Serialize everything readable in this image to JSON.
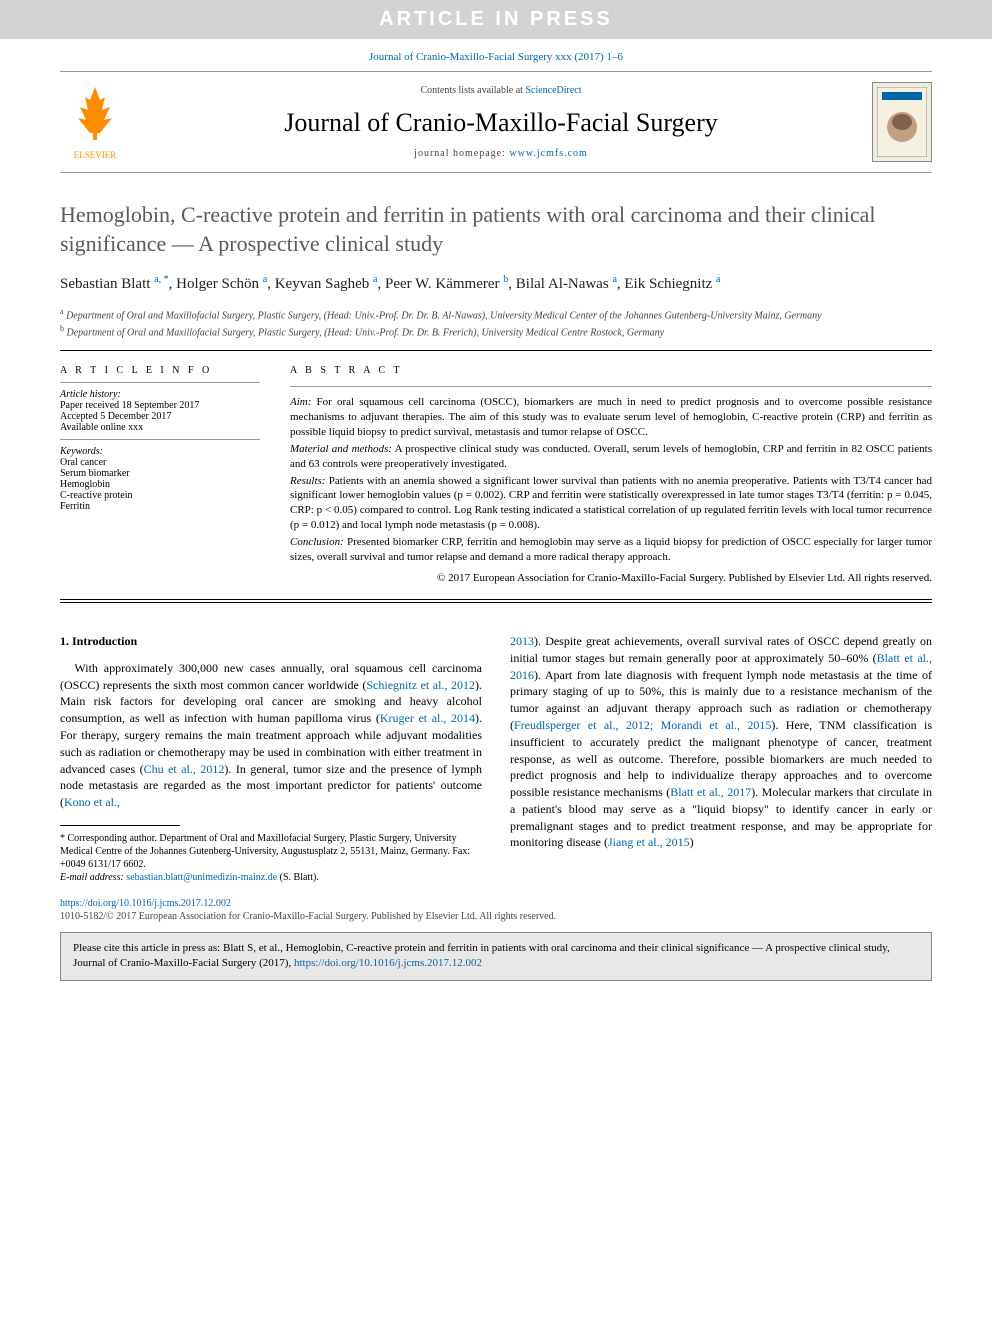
{
  "banner": "ARTICLE IN PRESS",
  "citation": "Journal of Cranio-Maxillo-Facial Surgery xxx (2017) 1–6",
  "header": {
    "contents_prefix": "Contents lists available at ",
    "contents_link": "ScienceDirect",
    "journal_title": "Journal of Cranio-Maxillo-Facial Surgery",
    "homepage_prefix": "journal homepage: ",
    "homepage_link": "www.jcmfs.com",
    "elsevier": "ELSEVIER"
  },
  "title": "Hemoglobin, C-reactive protein and ferritin in patients with oral carcinoma and their clinical significance — A prospective clinical study",
  "authors": [
    {
      "name": "Sebastian Blatt",
      "sup": "a, *"
    },
    {
      "name": "Holger Schön",
      "sup": "a"
    },
    {
      "name": "Keyvan Sagheb",
      "sup": "a"
    },
    {
      "name": "Peer W. Kämmerer",
      "sup": "b"
    },
    {
      "name": "Bilal Al-Nawas",
      "sup": "a"
    },
    {
      "name": "Eik Schiegnitz",
      "sup": "a"
    }
  ],
  "affiliations": [
    {
      "sup": "a",
      "text": "Department of Oral and Maxillofacial Surgery, Plastic Surgery, (Head: Univ.-Prof. Dr. Dr. B. Al-Nawas), University Medical Center of the Johannes Gutenberg-University Mainz, Germany"
    },
    {
      "sup": "b",
      "text": "Department of Oral and Maxillofacial Surgery, Plastic Surgery, (Head: Univ.-Prof. Dr. Dr. B. Frerich), University Medical Centre Rostock, Germany"
    }
  ],
  "info": {
    "header": "A R T I C L E   I N F O",
    "history_hdr": "Article history:",
    "history": [
      "Paper received 18 September 2017",
      "Accepted 5 December 2017",
      "Available online xxx"
    ],
    "keywords_hdr": "Keywords:",
    "keywords": [
      "Oral cancer",
      "Serum biomarker",
      "Hemoglobin",
      "C-reactive protein",
      "Ferritin"
    ]
  },
  "abstract": {
    "header": "A B S T R A C T",
    "sections": [
      {
        "label": "Aim:",
        "text": "For oral squamous cell carcinoma (OSCC), biomarkers are much in need to predict prognosis and to overcome possible resistance mechanisms to adjuvant therapies. The aim of this study was to evaluate serum level of hemoglobin, C-reactive protein (CRP) and ferritin as possible liquid biopsy to predict survival, metastasis and tumor relapse of OSCC."
      },
      {
        "label": "Material and methods:",
        "text": "A prospective clinical study was conducted. Overall, serum levels of hemoglobin, CRP and ferritin in 82 OSCC patients and 63 controls were preoperatively investigated."
      },
      {
        "label": "Results:",
        "text": "Patients with an anemia showed a significant lower survival than patients with no anemia preoperative. Patients with T3/T4 cancer had significant lower hemoglobin values (p = 0.002). CRP and ferritin were statistically overexpressed in late tumor stages T3/T4 (ferritin: p = 0.045, CRP: p < 0.05) compared to control. Log Rank testing indicated a statistical correlation of up regulated ferritin levels with local tumor recurrence (p = 0.012) and local lymph node metastasis (p = 0.008)."
      },
      {
        "label": "Conclusion:",
        "text": "Presented biomarker CRP, ferritin and hemoglobin may serve as a liquid biopsy for prediction of OSCC especially for larger tumor sizes, overall survival and tumor relapse and demand a more radical therapy approach."
      }
    ],
    "copyright": "© 2017 European Association for Cranio-Maxillo-Facial Surgery. Published by Elsevier Ltd. All rights reserved."
  },
  "intro": {
    "heading": "1. Introduction",
    "left": {
      "p1_a": "With approximately 300,000 new cases annually, oral squamous cell carcinoma (OSCC) represents the sixth most common cancer worldwide (",
      "r1": "Schiegnitz et al., 2012",
      "p1_b": "). Main risk factors for developing oral cancer are smoking and heavy alcohol consumption, as well as infection with human papilloma virus (",
      "r2": "Kruger et al., 2014",
      "p1_c": "). For therapy, surgery remains the main treatment approach while adjuvant modalities such as radiation or chemotherapy may be used in combination with either treatment in advanced cases (",
      "r3": "Chu et al., 2012",
      "p1_d": "). In general, tumor size and the presence of lymph node metastasis are regarded as the most important predictor for patients' outcome (",
      "r4": "Kono et al.,"
    },
    "right": {
      "r5": "2013",
      "p2_a": "). Despite great achievements, overall survival rates of OSCC depend greatly on initial tumor stages but remain generally poor at approximately 50–60% (",
      "r6": "Blatt et al., 2016",
      "p2_b": "). Apart from late diagnosis with frequent lymph node metastasis at the time of primary staging of up to 50%, this is mainly due to a resistance mechanism of the tumor against an adjuvant therapy approach such as radiation or chemotherapy (",
      "r7": "Freudlsperger et al., 2012; Morandi et al., 2015",
      "p2_c": "). Here, TNM classification is insufficient to accurately predict the malignant phenotype of cancer, treatment response, as well as outcome. Therefore, possible biomarkers are much needed to predict prognosis and help to individualize therapy approaches and to overcome possible resistance mechanisms (",
      "r8": "Blatt et al., 2017",
      "p2_d": "). Molecular markers that circulate in a patient's blood may serve as a \"liquid biopsy\" to identify cancer in early or premalignant stages and to predict treatment response, and may be appropriate for monitoring disease (",
      "r9": "Jiang et al., 2015",
      "p2_e": ")"
    }
  },
  "corresponding": {
    "star": "*",
    "text": "Corresponding author. Department of Oral and Maxillofacial Surgery, Plastic Surgery, University Medical Centre of the Johannes Gutenberg-University, Augustusplatz 2, 55131, Mainz, Germany. Fax: +0049 6131/17 6602.",
    "email_label": "E-mail address:",
    "email": "sebastian.blatt@unimedizin-mainz.de",
    "email_suffix": "(S. Blatt)."
  },
  "doi": "https://doi.org/10.1016/j.jcms.2017.12.002",
  "issn_line": "1010-5182/© 2017 European Association for Cranio-Maxillo-Facial Surgery. Published by Elsevier Ltd. All rights reserved.",
  "cite_box": {
    "text_a": "Please cite this article in press as: Blatt S, et al., Hemoglobin, C-reactive protein and ferritin in patients with oral carcinoma and their clinical significance — A prospective clinical study, Journal of Cranio-Maxillo-Facial Surgery (2017), ",
    "link": "https://doi.org/10.1016/j.jcms.2017.12.002"
  },
  "colors": {
    "link": "#0066aa",
    "banner_bg": "#d3d3d3",
    "heading_gray": "#5a5a5a",
    "elsevier_orange": "#ff8c00"
  }
}
